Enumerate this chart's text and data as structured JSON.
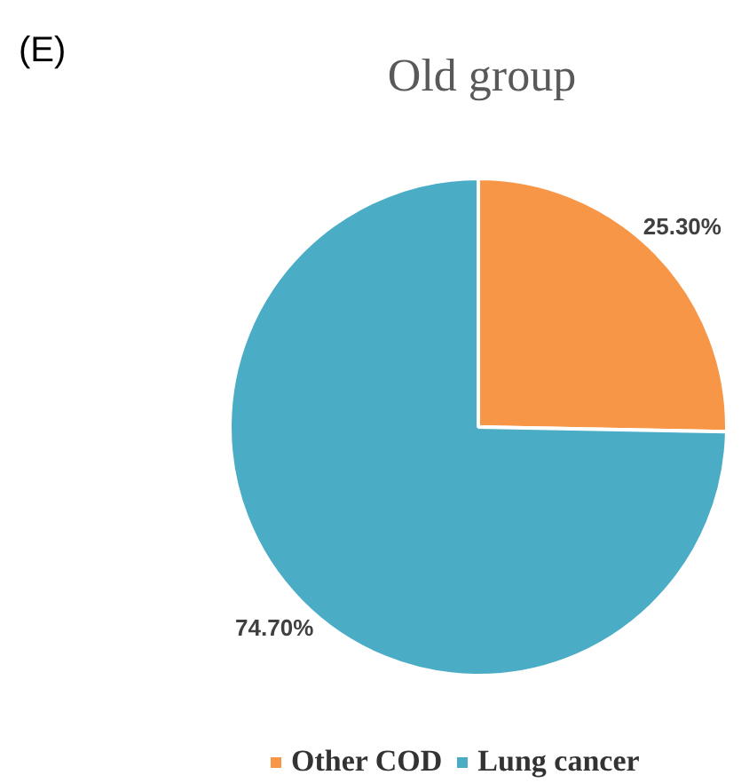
{
  "chart_data": {
    "type": "pie",
    "title": "Old group",
    "categories": [
      "Other COD",
      "Lung cancer"
    ],
    "values": [
      25.3,
      74.7
    ],
    "colors": [
      "#f79646",
      "#4bacc6"
    ],
    "value_labels": [
      "25.30%",
      "74.70%"
    ],
    "legend": "bottom",
    "annotations": [
      "(E)"
    ]
  }
}
